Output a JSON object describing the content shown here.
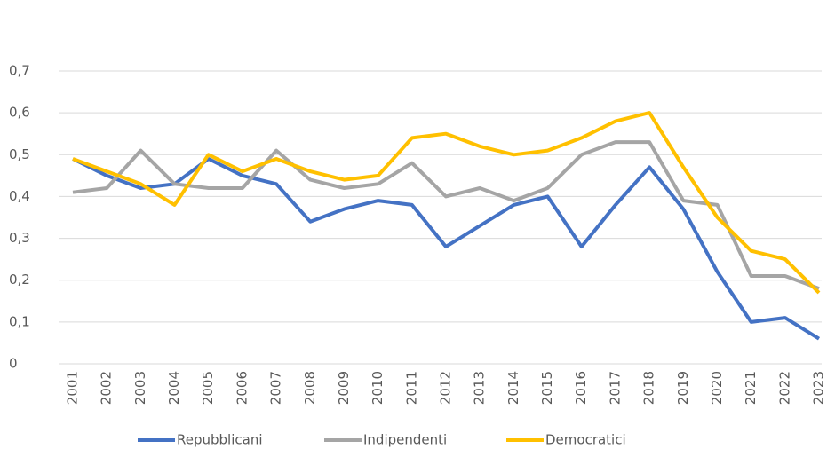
{
  "chart_data": {
    "type": "line",
    "categories": [
      "2001",
      "2002",
      "2003",
      "2004",
      "2005",
      "2006",
      "2007",
      "2008",
      "2009",
      "2010",
      "2011",
      "2012",
      "2013",
      "2014",
      "2015",
      "2016",
      "2017",
      "2018",
      "2019",
      "2020",
      "2021",
      "2022",
      "2023"
    ],
    "series": [
      {
        "name": "Repubblicani",
        "color": "#4472c4",
        "values": [
          0.49,
          0.45,
          0.42,
          0.43,
          0.49,
          0.45,
          0.43,
          0.34,
          0.37,
          0.39,
          0.38,
          0.28,
          0.33,
          0.38,
          0.4,
          0.28,
          0.38,
          0.47,
          0.37,
          0.22,
          0.1,
          0.11,
          0.06
        ]
      },
      {
        "name": "Indipendenti",
        "color": "#a5a5a5",
        "values": [
          0.41,
          0.42,
          0.51,
          0.43,
          0.42,
          0.42,
          0.51,
          0.44,
          0.42,
          0.43,
          0.48,
          0.4,
          0.42,
          0.39,
          0.42,
          0.5,
          0.53,
          0.53,
          0.39,
          0.38,
          0.21,
          0.21,
          0.18
        ]
      },
      {
        "name": "Democratici",
        "color": "#ffc000",
        "values": [
          0.49,
          0.46,
          0.43,
          0.38,
          0.5,
          0.46,
          0.49,
          0.46,
          0.44,
          0.45,
          0.54,
          0.55,
          0.52,
          0.5,
          0.51,
          0.54,
          0.58,
          0.6,
          0.47,
          0.35,
          0.27,
          0.25,
          0.17
        ]
      }
    ],
    "ylim": [
      0,
      0.7
    ],
    "yticks": [
      0,
      {
        "value": 0.1,
        "label": "0,1"
      },
      {
        "value": 0.2,
        "label": "0,2"
      },
      {
        "value": 0.3,
        "label": "0,3"
      },
      {
        "value": 0.4,
        "label": "0,4"
      },
      {
        "value": 0.5,
        "label": "0,5"
      },
      {
        "value": 0.6,
        "label": "0,6"
      },
      {
        "value": 0.7,
        "label": "0,7"
      }
    ],
    "grid": true,
    "legend": "bottom"
  }
}
